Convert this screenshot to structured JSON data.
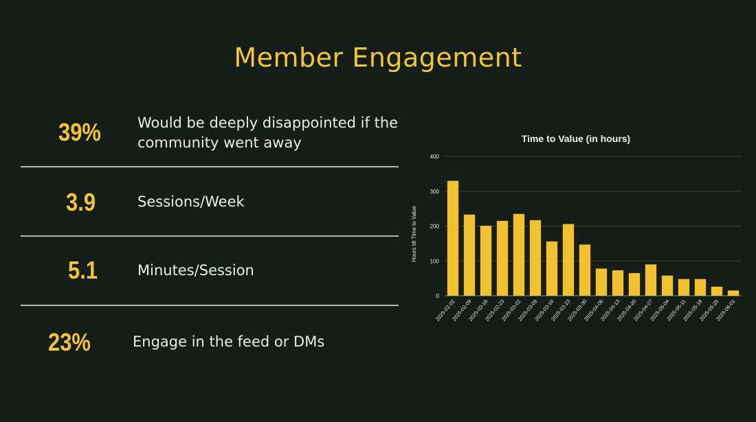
{
  "slide": {
    "title": "Member Engagement"
  },
  "stats": [
    {
      "value": "39%",
      "label": "Would be deeply disappointed if the community went away"
    },
    {
      "value": "3.9",
      "label": "Sessions/Week"
    },
    {
      "value": "5.1",
      "label": "Minutes/Session"
    },
    {
      "value": "23%",
      "label": "Engage in the feed or DMs"
    }
  ],
  "colors": {
    "background": "#151d18",
    "accent": "#f0c53a",
    "bar": "#f2c12f"
  },
  "chart_data": {
    "type": "bar",
    "title": "Time to Value (in hours)",
    "xlabel": "",
    "ylabel": "Hours till Time to Value",
    "ylim": [
      0,
      400
    ],
    "yticks": [
      0,
      100,
      200,
      300,
      400
    ],
    "grid": true,
    "categories": [
      "2025-02-02",
      "2025-02-09",
      "2025-02-16",
      "2025-02-23",
      "2025-03-02",
      "2025-03-09",
      "2025-03-16",
      "2025-03-23",
      "2025-03-30",
      "2025-04-06",
      "2025-04-13",
      "2025-04-20",
      "2025-04-27",
      "2025-05-04",
      "2025-05-11",
      "2025-05-18",
      "2025-05-25",
      "2025-06-01"
    ],
    "values": [
      330,
      233,
      201,
      215,
      235,
      217,
      156,
      206,
      147,
      78,
      73,
      65,
      90,
      58,
      48,
      48,
      26,
      15
    ]
  }
}
